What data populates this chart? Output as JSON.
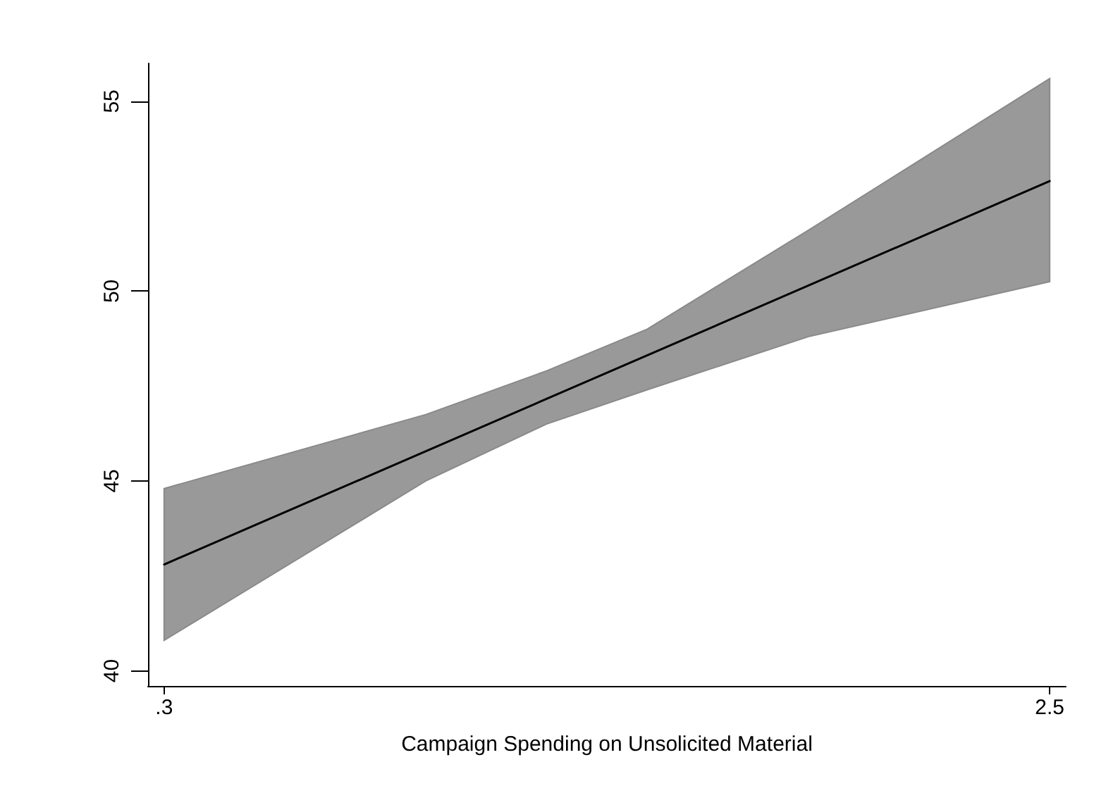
{
  "chart_data": {
    "type": "line",
    "xlabel": "Campaign Spending on Unsolicited Material",
    "xlim": [
      0.26,
      2.54
    ],
    "ylim": [
      39.6,
      56
    ],
    "xticks": [
      {
        "value": 0.3,
        "label": ".3"
      },
      2.5
    ],
    "yticks": [
      40,
      45,
      50,
      55
    ],
    "grid": false,
    "marker": "none",
    "line_style": "solid",
    "series": [
      {
        "color": "#000000",
        "x": [
          0.3,
          0.95,
          1.25,
          1.5,
          1.9,
          2.5
        ],
        "values": [
          42.8,
          null,
          null,
          null,
          null,
          52.9
        ],
        "lower": [
          40.8,
          45.0,
          46.5,
          47.4,
          48.8,
          50.25
        ],
        "upper": [
          44.8,
          46.75,
          47.9,
          49.0,
          51.6,
          55.6
        ]
      }
    ]
  }
}
